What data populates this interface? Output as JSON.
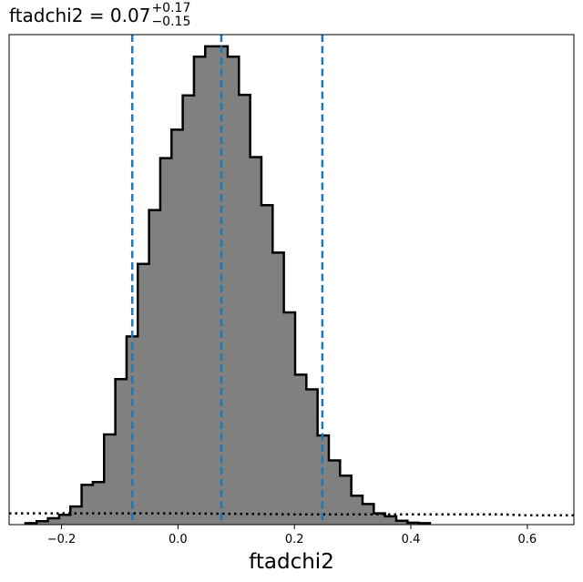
{
  "chart_data": {
    "type": "histogram",
    "title": {
      "parameter": "ftadchi2",
      "median": "0.07",
      "upper_error": "+0.17",
      "lower_error": "−0.15"
    },
    "xlabel": "ftadchi2",
    "ylabel": "",
    "xlim": [
      -0.29,
      0.68
    ],
    "ylim": [
      0,
      1.0
    ],
    "yticks_visible": false,
    "grid": false,
    "xticks": [
      {
        "value": -0.2,
        "label": "−0.2"
      },
      {
        "value": 0.0,
        "label": "0.0"
      },
      {
        "value": 0.2,
        "label": "0.2"
      },
      {
        "value": 0.4,
        "label": "0.4"
      },
      {
        "value": 0.6,
        "label": "0.6"
      }
    ],
    "histogram": {
      "bin_width": 0.0193,
      "bin_edges_start": -0.262,
      "counts": [
        0.003,
        0.007,
        0.013,
        0.02,
        0.037,
        0.081,
        0.087,
        0.184,
        0.297,
        0.384,
        0.532,
        0.642,
        0.748,
        0.806,
        0.876,
        0.955,
        0.976,
        0.976,
        0.955,
        0.877,
        0.75,
        0.652,
        0.555,
        0.433,
        0.306,
        0.276,
        0.182,
        0.131,
        0.1,
        0.059,
        0.042,
        0.023,
        0.017,
        0.008,
        0.004,
        0.003
      ],
      "fill": "#808080",
      "edge": "#000000"
    },
    "prior": {
      "style": "dotted",
      "color": "#000000",
      "points": [
        {
          "x": -0.29,
          "y": 0.023
        },
        {
          "x": 0.0,
          "y": 0.023
        },
        {
          "x": 0.2,
          "y": 0.021
        },
        {
          "x": 0.35,
          "y": 0.021
        },
        {
          "x": 0.55,
          "y": 0.021
        },
        {
          "x": 0.6,
          "y": 0.019
        },
        {
          "x": 0.68,
          "y": 0.019
        }
      ]
    },
    "quantile_lines": {
      "style": "dashed",
      "color": "#1f77b4",
      "values": [
        -0.0785,
        0.0745,
        0.248
      ]
    }
  }
}
